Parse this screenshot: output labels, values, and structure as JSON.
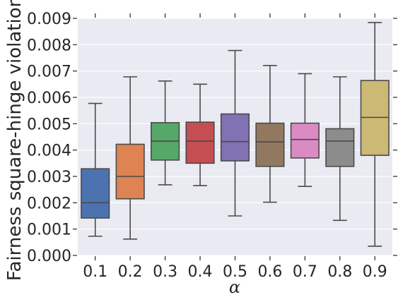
{
  "chart_data": {
    "type": "box",
    "title": "",
    "xlabel": "α",
    "ylabel": "Fairness square-hinge violation",
    "ylim": [
      0,
      0.009
    ],
    "yticks": [
      "0.000",
      "0.001",
      "0.002",
      "0.003",
      "0.004",
      "0.005",
      "0.006",
      "0.007",
      "0.008",
      "0.009"
    ],
    "grid": true,
    "categories": [
      "0.1",
      "0.2",
      "0.3",
      "0.4",
      "0.5",
      "0.6",
      "0.7",
      "0.8",
      "0.9"
    ],
    "boxes": [
      {
        "category": "0.1",
        "whisker_low": 0.00073,
        "q1": 0.00142,
        "median": 0.002,
        "q3": 0.00329,
        "whisker_high": 0.00577,
        "color": "#4c72b0"
      },
      {
        "category": "0.2",
        "whisker_low": 0.00062,
        "q1": 0.00215,
        "median": 0.003,
        "q3": 0.00422,
        "whisker_high": 0.00678,
        "color": "#dd8452"
      },
      {
        "category": "0.3",
        "whisker_low": 0.00268,
        "q1": 0.00362,
        "median": 0.00434,
        "q3": 0.00504,
        "whisker_high": 0.00662,
        "color": "#55a868"
      },
      {
        "category": "0.4",
        "whisker_low": 0.00265,
        "q1": 0.0035,
        "median": 0.00434,
        "q3": 0.00506,
        "whisker_high": 0.0065,
        "color": "#c44e52"
      },
      {
        "category": "0.5",
        "whisker_low": 0.0015,
        "q1": 0.00359,
        "median": 0.00432,
        "q3": 0.00537,
        "whisker_high": 0.00778,
        "color": "#8172b3"
      },
      {
        "category": "0.6",
        "whisker_low": 0.00202,
        "q1": 0.00338,
        "median": 0.00431,
        "q3": 0.00502,
        "whisker_high": 0.00721,
        "color": "#937860"
      },
      {
        "category": "0.7",
        "whisker_low": 0.00262,
        "q1": 0.0037,
        "median": 0.0044,
        "q3": 0.00502,
        "whisker_high": 0.0069,
        "color": "#da8bc3"
      },
      {
        "category": "0.8",
        "whisker_low": 0.00133,
        "q1": 0.00338,
        "median": 0.00434,
        "q3": 0.00481,
        "whisker_high": 0.00678,
        "color": "#8c8c8c"
      },
      {
        "category": "0.9",
        "whisker_low": 0.00035,
        "q1": 0.0038,
        "median": 0.00524,
        "q3": 0.00664,
        "whisker_high": 0.00884,
        "color": "#ccb974"
      }
    ],
    "colors": {
      "plot_background": "#eaeaf2",
      "grid": "#ffffff",
      "box_edge": "#4a4a4a"
    }
  }
}
